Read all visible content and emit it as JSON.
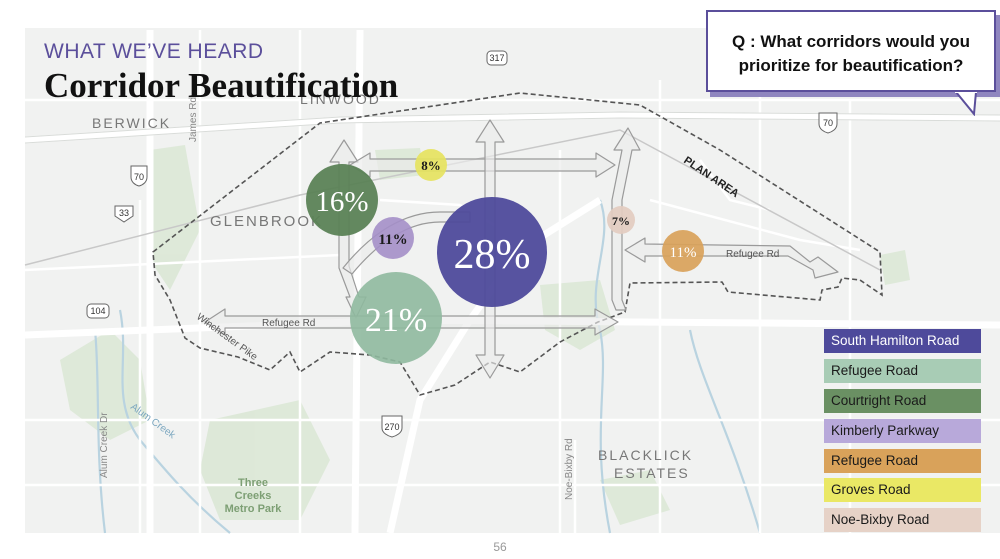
{
  "header": {
    "kicker": "WHAT WE’VE HEARD",
    "title": "Corridor Beautification"
  },
  "question": {
    "line1": "Q : What corridors would you",
    "line2": "prioritize for beautification?"
  },
  "map_labels": {
    "berwick": "BERWICK",
    "linwood": "LINWOOD",
    "glenbrook": "GLENBROOK",
    "blacklick_1": "BLACKLICK",
    "blacklick_2": "ESTATES",
    "plan_area": "PLAN AREA",
    "james_rd": "James Rd",
    "refugee_rd_west": "Refugee Rd",
    "refugee_rd_east": "Refugee Rd",
    "winchester_pike": "Winchester Pike",
    "alum_creek": "Alum Creek",
    "alum_creek_dr": "Alum Creek Dr",
    "noe_bixby_rd": "Noe-Bixby Rd",
    "park_1": "Three",
    "park_2": "Creeks",
    "park_3": "Metro Park"
  },
  "route_shields": {
    "r317": "317",
    "r70_west": "70",
    "r33": "33",
    "r104": "104",
    "r270": "270",
    "r70_east": "70"
  },
  "bubbles": [
    {
      "label": "28%",
      "value": 28,
      "corridor": "South Hamilton Road",
      "color": "#4e4a9b"
    },
    {
      "label": "21%",
      "value": 21,
      "corridor": "Refugee Road",
      "color": "#8fb99e"
    },
    {
      "label": "16%",
      "value": 16,
      "corridor": "Courtright Road",
      "color": "#5b8256"
    },
    {
      "label": "11%",
      "value": 11,
      "corridor": "Kimberly Parkway",
      "color": "#a48fc8"
    },
    {
      "label": "11%",
      "value": 11,
      "corridor": "Refugee Road",
      "color": "#d9a25a"
    },
    {
      "label": "8%",
      "value": 8,
      "corridor": "Groves Road",
      "color": "#e6e35f"
    },
    {
      "label": "7%",
      "value": 7,
      "corridor": "Noe-Bixby Road",
      "color": "#e3ccc0"
    }
  ],
  "legend": [
    {
      "label": "South Hamilton Road",
      "color": "#4e4a9b",
      "text_color": "#ffffff"
    },
    {
      "label": "Refugee Road",
      "color": "#a8ccb5",
      "text_color": "#1a1a1a"
    },
    {
      "label": "Courtright Road",
      "color": "#6a9063",
      "text_color": "#1a1a1a"
    },
    {
      "label": "Kimberly Parkway",
      "color": "#b8a9da",
      "text_color": "#1a1a1a"
    },
    {
      "label": "Refugee Road",
      "color": "#d9a25a",
      "text_color": "#1a1a1a"
    },
    {
      "label": "Groves Road",
      "color": "#eae865",
      "text_color": "#1a1a1a"
    },
    {
      "label": "Noe-Bixby Road",
      "color": "#e6d2c7",
      "text_color": "#1a1a1a"
    }
  ],
  "page_number": "56"
}
